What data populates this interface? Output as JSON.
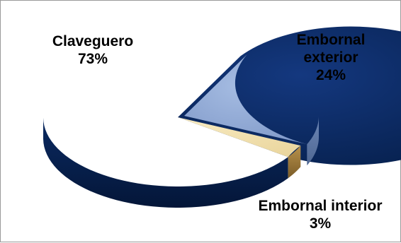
{
  "chart_data": {
    "type": "pie",
    "style": "3d-exploded",
    "title": "",
    "slices": [
      {
        "label": "Claveguero",
        "label_lines": [
          "Claveguero"
        ],
        "value": 73,
        "value_label": "73%",
        "color": "#0a2a66"
      },
      {
        "label": "Embornal exterior",
        "label_lines": [
          "Embornal",
          "exterior"
        ],
        "value": 24,
        "value_label": "24%",
        "color": "#8ea7d3"
      },
      {
        "label": "Embornal interior",
        "label_lines": [
          "Embornal interior"
        ],
        "value": 3,
        "value_label": "3%",
        "color": "#f1e0ad"
      }
    ]
  }
}
